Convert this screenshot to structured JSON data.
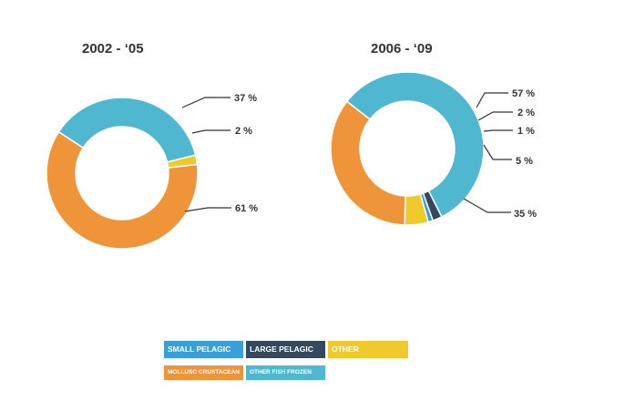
{
  "chart_data": [
    {
      "type": "pie",
      "title": "2002 - ‘05",
      "slices": [
        {
          "category": "Other fish frozen",
          "value": 37,
          "label": "37 %",
          "color": "#4fb7cf"
        },
        {
          "category": "Other",
          "value": 2,
          "label": "2 %",
          "color": "#f0c92c"
        },
        {
          "category": "Mollusc crustacean",
          "value": 61,
          "label": "61 %",
          "color": "#f0943a"
        }
      ]
    },
    {
      "type": "pie",
      "title": "2006 - ‘09",
      "slices": [
        {
          "category": "Other fish frozen",
          "value": 57,
          "label": "57 %",
          "color": "#4fb7cf"
        },
        {
          "category": "Large pelagic",
          "value": 2,
          "label": "2 %",
          "color": "#34495e"
        },
        {
          "category": "Small pelagic",
          "value": 1,
          "label": "1 %",
          "color": "#3a9fd6"
        },
        {
          "category": "Other",
          "value": 5,
          "label": "5 %",
          "color": "#f0c92c"
        },
        {
          "category": "Mollusc crustacean",
          "value": 35,
          "label": "35 %",
          "color": "#f0943a"
        }
      ]
    }
  ],
  "legend": {
    "items": [
      {
        "label": "SMALL PELAGIC",
        "color": "#3a9fd6"
      },
      {
        "label": "LARGE PELAGIC",
        "color": "#34495e"
      },
      {
        "label": "OTHER",
        "color": "#f0c92c"
      },
      {
        "label": "MOLLUSC CRUSTACEAN",
        "color": "#f0943a"
      },
      {
        "label": "OTHER FISH FROZEN",
        "color": "#4fb7cf"
      }
    ]
  }
}
